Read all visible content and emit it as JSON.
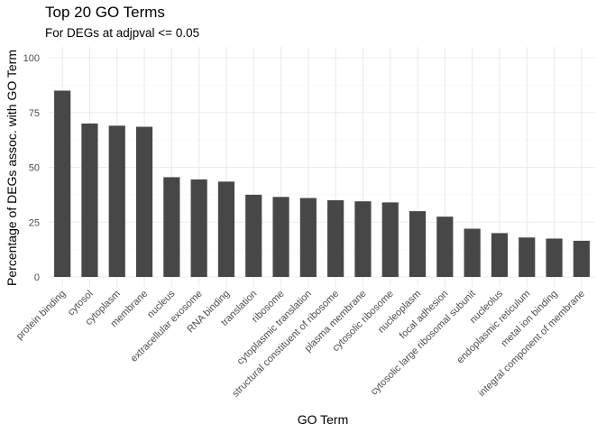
{
  "chart_data": {
    "type": "bar",
    "title": "Top 20 GO Terms",
    "subtitle": "For DEGs at adjpval <= 0.05",
    "xlabel": "GO Term",
    "ylabel": "Percentage of DEGs assoc. with GO Term",
    "ylim": [
      0,
      100
    ],
    "yticks": [
      0,
      25,
      50,
      75,
      100
    ],
    "grid": true,
    "bar_color": "#474747",
    "categories": [
      "protein binding",
      "cytosol",
      "cytoplasm",
      "membrane",
      "nucleus",
      "extracellular exosome",
      "RNA binding",
      "translation",
      "ribosome",
      "cytoplasmic translation",
      "structural constituent of ribosome",
      "plasma membrane",
      "cytosolic ribosome",
      "nucleoplasm",
      "focal adhesion",
      "cytosolic large ribosomal subunit",
      "nucleolus",
      "endoplasmic reticulum",
      "metal ion binding",
      "integral component of membrane"
    ],
    "values": [
      85,
      70,
      69,
      68.5,
      45.5,
      44.5,
      43.5,
      37.5,
      36.5,
      36,
      35,
      34.5,
      34,
      30,
      27.5,
      22,
      20,
      18,
      17.5,
      16.5
    ]
  }
}
